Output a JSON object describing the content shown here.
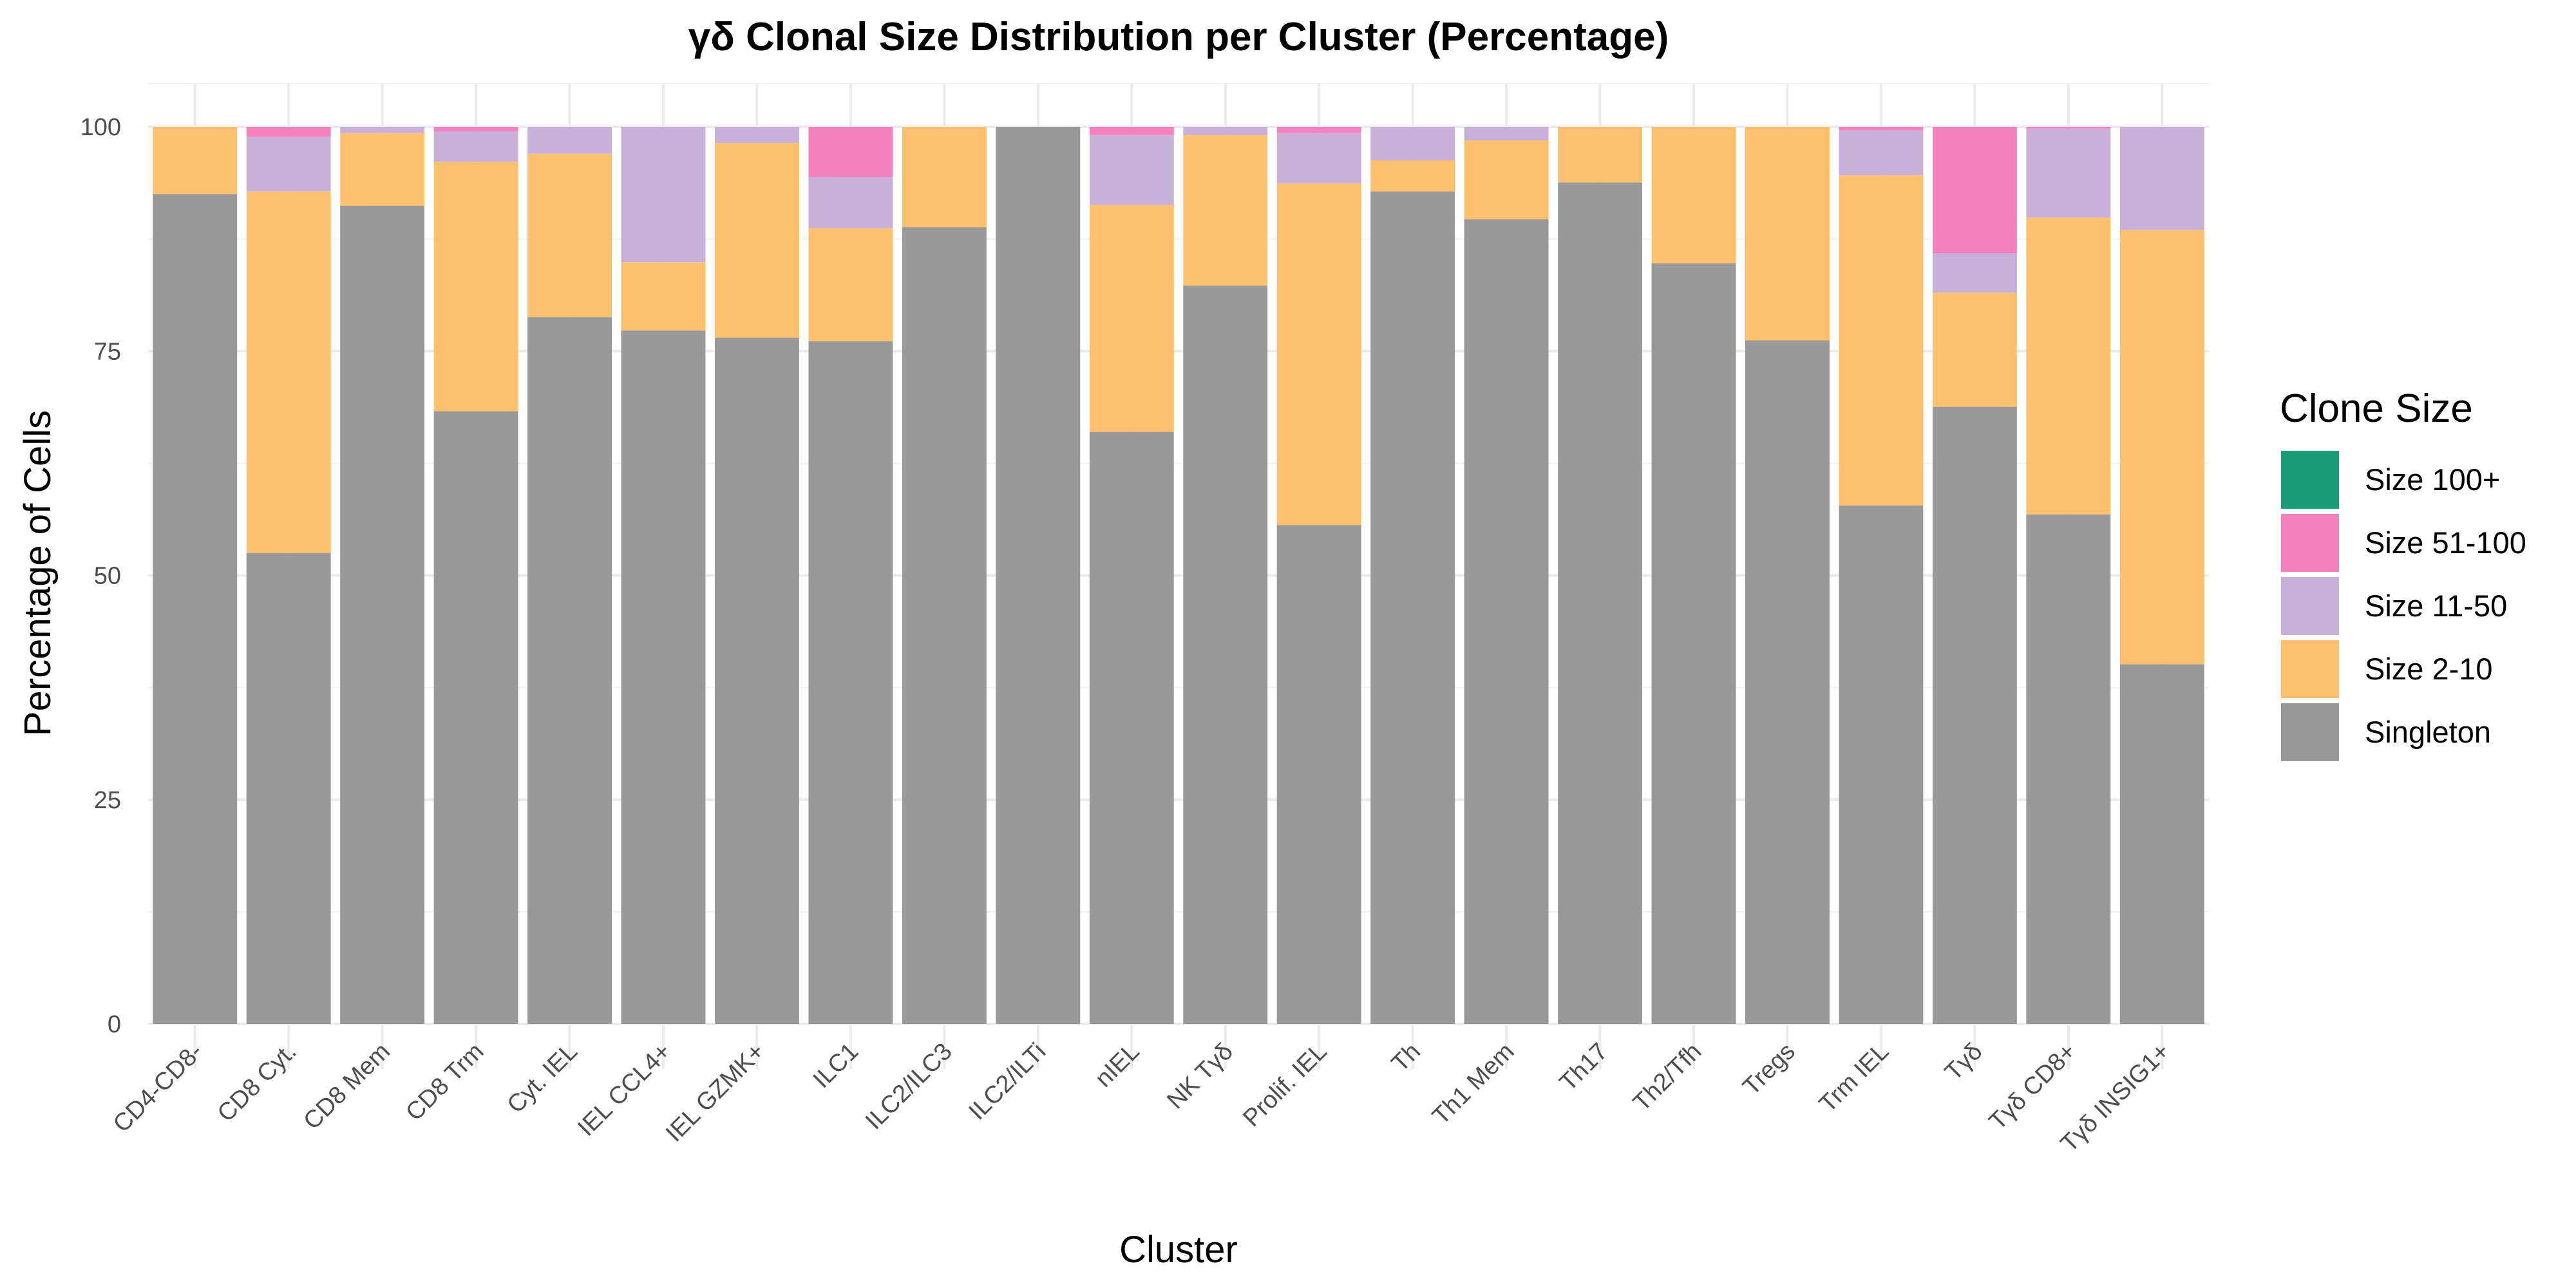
{
  "chart_data": {
    "type": "bar",
    "stacked": true,
    "title": "γδ Clonal Size Distribution per Cluster (Percentage)",
    "xlabel": "Cluster",
    "ylabel": "Percentage of Cells",
    "ylim": [
      0,
      100
    ],
    "yticks": [
      0,
      25,
      50,
      75,
      100
    ],
    "grid": true,
    "legend": {
      "title": "Clone Size",
      "position": "right"
    },
    "categories": [
      "CD4-CD8-",
      "CD8 Cyt.",
      "CD8 Mem",
      "CD8 Trm",
      "Cyt. IEL",
      "IEL CCL4+",
      "IEL GZMK+",
      "ILC1",
      "ILC2/ILC3",
      "ILC2/ILTi",
      "nIEL",
      "NK Tγδ",
      "Prolif. IEL",
      "Th",
      "Th1 Mem",
      "Th17",
      "Th2/Tfh",
      "Tregs",
      "Trm IEL",
      "Tγδ",
      "Tγδ CD8+",
      "Tγδ INSIG1+"
    ],
    "series": [
      {
        "name": "Singleton",
        "color": "#999999",
        "values": [
          92.5,
          52.5,
          91.2,
          68.3,
          78.8,
          77.3,
          76.5,
          76.1,
          88.8,
          100.0,
          66.0,
          82.3,
          55.6,
          92.8,
          89.7,
          93.8,
          84.8,
          76.2,
          57.8,
          68.8,
          56.8,
          40.1
        ]
      },
      {
        "name": "Size 2-10",
        "color": "#FDC06F",
        "values": [
          7.5,
          40.3,
          8.1,
          27.8,
          18.2,
          7.6,
          21.7,
          12.6,
          11.2,
          0.0,
          25.3,
          16.8,
          38.1,
          3.5,
          8.8,
          6.2,
          15.2,
          23.8,
          36.8,
          12.7,
          33.1,
          48.4
        ]
      },
      {
        "name": "Size 11-50",
        "color": "#C8B1D8",
        "values": [
          0.0,
          6.1,
          0.7,
          3.4,
          3.0,
          15.1,
          1.8,
          5.7,
          0.0,
          0.0,
          7.8,
          0.9,
          5.6,
          3.7,
          1.5,
          0.0,
          0.0,
          0.0,
          5.0,
          4.4,
          9.9,
          11.5
        ]
      },
      {
        "name": "Size 51-100",
        "color": "#F781BF",
        "values": [
          0.0,
          1.1,
          0.0,
          0.5,
          0.0,
          0.0,
          0.0,
          5.6,
          0.0,
          0.0,
          0.9,
          0.0,
          0.7,
          0.0,
          0.0,
          0.0,
          0.0,
          0.0,
          0.4,
          14.1,
          0.2,
          0.0
        ]
      },
      {
        "name": "Size 100+",
        "color": "#1B9E77",
        "values": [
          0,
          0,
          0,
          0,
          0,
          0,
          0,
          0,
          0,
          0,
          0,
          0,
          0,
          0,
          0,
          0,
          0,
          0,
          0,
          0,
          0,
          0
        ]
      }
    ]
  }
}
